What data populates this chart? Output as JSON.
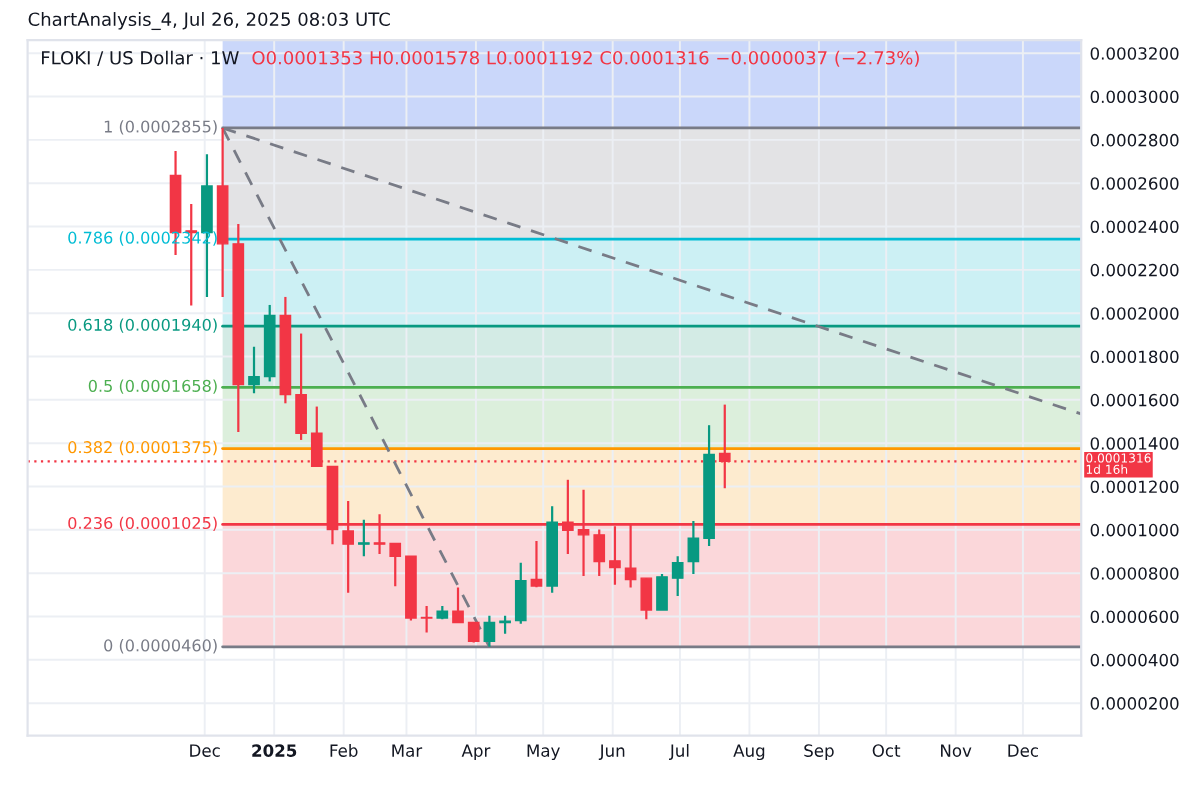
{
  "chart_data": {
    "type": "candlestick",
    "title": "FLOKI / US Dollar · 1W",
    "subtitle": "O0.0001353 H0.0001578 L0.0001192 C0.0001316 −0.0000037 (−2.73%)",
    "annotations": [
      "ChartAnalysis_4, Jul 26, 2025 08:03 UTC"
    ],
    "x": [
      "2024-11-18",
      "2024-11-25",
      "2024-12-02",
      "2024-12-09",
      "2024-12-16",
      "2024-12-23",
      "2024-12-30",
      "2025-01-06",
      "2025-01-13",
      "2025-01-20",
      "2025-01-27",
      "2025-02-03",
      "2025-02-10",
      "2025-02-17",
      "2025-02-24",
      "2025-03-03",
      "2025-03-10",
      "2025-03-17",
      "2025-03-24",
      "2025-03-31",
      "2025-04-07",
      "2025-04-14",
      "2025-04-21",
      "2025-04-28",
      "2025-05-05",
      "2025-05-12",
      "2025-05-19",
      "2025-05-26",
      "2025-06-02",
      "2025-06-09",
      "2025-06-16",
      "2025-06-23",
      "2025-06-30",
      "2025-07-07",
      "2025-07-14",
      "2025-07-21"
    ],
    "ohlc": [
      [
        0.0002636,
        0.0002749,
        0.0002268,
        0.0002372
      ],
      [
        0.000238,
        0.0002504,
        0.0002035,
        0.0002372
      ],
      [
        0.0002372,
        0.0002734,
        0.0002075,
        0.0002587
      ],
      [
        0.0002587,
        0.0002855,
        0.0002075,
        0.000232
      ],
      [
        0.000232,
        0.0002412,
        0.0001452,
        0.000167
      ],
      [
        0.000167,
        0.0001845,
        0.000163,
        0.0001707
      ],
      [
        0.0001707,
        0.0002038,
        0.0001685,
        0.0001989
      ],
      [
        0.0001989,
        0.0002075,
        0.0001584,
        0.0001624
      ],
      [
        0.0001624,
        0.0001906,
        0.0001415,
        0.0001446
      ],
      [
        0.0001446,
        0.0001569,
        0.0001293,
        0.0001293
      ],
      [
        0.0001293,
        0.0001293,
        9.34e-05,
        0.0001001
      ],
      [
        9.95e-05,
        0.0001133,
        7.1e-05,
        9.34e-05
      ],
      [
        9.34e-05,
        0.0001047,
        8.78e-05,
        9.4e-05
      ],
      [
        9.4e-05,
        0.0001072,
        8.88e-05,
        9.34e-05
      ],
      [
        9.37e-05,
        9.37e-05,
        7.4e-05,
        8.78e-05
      ],
      [
        8.78e-05,
        8.78e-05,
        5.81e-05,
        5.93e-05
      ],
      [
        5.96e-05,
        6.49e-05,
        5.26e-05,
        5.93e-05
      ],
      [
        5.93e-05,
        6.49e-05,
        5.87e-05,
        6.24e-05
      ],
      [
        6.24e-05,
        7.34e-05,
        5.72e-05,
        5.72e-05
      ],
      [
        5.72e-05,
        5.72e-05,
        4.8e-05,
        4.86e-05
      ],
      [
        4.86e-05,
        6.03e-05,
        4.6e-05,
        5.72e-05
      ],
      [
        5.72e-05,
        6.03e-05,
        5.2e-05,
        5.78e-05
      ],
      [
        5.81e-05,
        8.48e-05,
        5.66e-05,
        7.65e-05
      ],
      [
        7.71e-05,
        9.49e-05,
        7.35e-05,
        7.41e-05
      ],
      [
        7.41e-05,
        0.0001109,
        7.1e-05,
        0.0001035
      ],
      [
        0.0001035,
        0.0001231,
        8.88e-05,
        9.98e-05
      ],
      [
        0.0001001,
        0.0001185,
        7.87e-05,
        9.77e-05
      ],
      [
        9.77e-05,
        0.0001001,
        7.87e-05,
        8.54e-05
      ],
      [
        8.57e-05,
        0.0001017,
        7.47e-05,
        8.26e-05
      ],
      [
        8.23e-05,
        0.0001023,
        7.34e-05,
        7.71e-05
      ],
      [
        7.77e-05,
        7.77e-05,
        5.87e-05,
        6.3e-05
      ],
      [
        6.3e-05,
        7.96e-05,
        6.3e-05,
        7.83e-05
      ],
      [
        7.77e-05,
        8.78e-05,
        6.95e-05,
        8.48e-05
      ],
      [
        8.54e-05,
        0.0001041,
        7.96e-05,
        9.61e-05
      ],
      [
        9.61e-05,
        0.0001483,
        9.25e-05,
        0.0001348
      ],
      [
        0.0001353,
        0.0001578,
        0.0001192,
        0.0001316
      ]
    ],
    "colors": [
      "#f23645",
      "#f23645",
      "#089981",
      "#f23645",
      "#f23645",
      "#089981",
      "#089981",
      "#f23645",
      "#f23645",
      "#f23645",
      "#f23645",
      "#f23645",
      "#089981",
      "#f23645",
      "#f23645",
      "#f23645",
      "#f23645",
      "#089981",
      "#f23645",
      "#f23645",
      "#089981",
      "#089981",
      "#089981",
      "#f23645",
      "#089981",
      "#f23645",
      "#f23645",
      "#f23645",
      "#f23645",
      "#f23645",
      "#f23645",
      "#089981",
      "#089981",
      "#089981",
      "#089981",
      "#f23645"
    ],
    "series": [
      {
        "type": "line",
        "x": [
          "2024-12-09",
          "2025-04-07"
        ],
        "values": [
          0.0002855,
          4.6e-05
        ],
        "color": "#787b86"
      },
      {
        "type": "line",
        "x": [
          "2024-12-09",
          "2025-12-27"
        ],
        "values": [
          0.0002855,
          0.0001535
        ],
        "color": "#787b86"
      }
    ],
    "line_style": "dashed",
    "ref_lines": [
      {
        "axis": "y",
        "value": 0.0002855,
        "label": "1 (0.0002855)",
        "color": "#787b86"
      },
      {
        "axis": "y",
        "value": 0.0002342,
        "label": "0.786 (0.0002342)",
        "color": "#00bcd4"
      },
      {
        "axis": "y",
        "value": 0.000194,
        "label": "0.618 (0.0001940)",
        "color": "#089981"
      },
      {
        "axis": "y",
        "value": 0.0001658,
        "label": "0.5 (0.0001658)",
        "color": "#4caf50"
      },
      {
        "axis": "y",
        "value": 0.0001375,
        "label": "0.382 (0.0001375)",
        "color": "#ff9800"
      },
      {
        "axis": "y",
        "value": 0.0001025,
        "label": "0.236 (0.0001025)",
        "color": "#f23645"
      },
      {
        "axis": "y",
        "value": 4.6e-05,
        "label": "0 (0.0000460)",
        "color": "#787b86"
      },
      {
        "axis": "y",
        "value": 0.0001316,
        "label": "0.0001316\n1d 16h",
        "color": "#f23645",
        "line_style": "dotted"
      }
    ],
    "bands": [
      {
        "axis": "y",
        "from": 0.0002855,
        "to": 0.000326,
        "color": "#cad7fa"
      },
      {
        "axis": "y",
        "from": 0.0002342,
        "to": 0.0002855,
        "color": "#e3e3e5"
      },
      {
        "axis": "y",
        "from": 0.000194,
        "to": 0.0002342,
        "color": "#ccf0f4"
      },
      {
        "axis": "y",
        "from": 0.0001658,
        "to": 0.000194,
        "color": "#d3ebe5"
      },
      {
        "axis": "y",
        "from": 0.0001375,
        "to": 0.0001658,
        "color": "#dcefdc"
      },
      {
        "axis": "y",
        "from": 0.0001025,
        "to": 0.0001375,
        "color": "#fdebcf"
      },
      {
        "axis": "y",
        "from": 4.6e-05,
        "to": 0.0001025,
        "color": "#fbd7da"
      }
    ],
    "xlim": [
      "2024-09-13",
      "2025-12-27"
    ],
    "xticks": [
      {
        "value": "2024-12-01",
        "label": "Dec"
      },
      {
        "value": "2025-01-01",
        "label": "2025"
      },
      {
        "value": "2025-02-01",
        "label": "Feb"
      },
      {
        "value": "2025-03-01",
        "label": "Mar"
      },
      {
        "value": "2025-04-01",
        "label": "Apr"
      },
      {
        "value": "2025-05-01",
        "label": "May"
      },
      {
        "value": "2025-06-01",
        "label": "Jun"
      },
      {
        "value": "2025-07-01",
        "label": "Jul"
      },
      {
        "value": "2025-08-01",
        "label": "Aug"
      },
      {
        "value": "2025-09-01",
        "label": "Sep"
      },
      {
        "value": "2025-10-01",
        "label": "Oct"
      },
      {
        "value": "2025-11-01",
        "label": "Nov"
      },
      {
        "value": "2025-12-01",
        "label": "Dec"
      }
    ],
    "ylim": [
      5e-06,
      0.000326
    ],
    "yticks": [
      {
        "value": 2e-05,
        "label": "0.0000200"
      },
      {
        "value": 4e-05,
        "label": "0.0000400"
      },
      {
        "value": 6e-05,
        "label": "0.0000600"
      },
      {
        "value": 8e-05,
        "label": "0.0000800"
      },
      {
        "value": 0.0001,
        "label": "0.0001000"
      },
      {
        "value": 0.00012,
        "label": "0.0001200"
      },
      {
        "value": 0.00014,
        "label": "0.0001400"
      },
      {
        "value": 0.00016,
        "label": "0.0001600"
      },
      {
        "value": 0.00018,
        "label": "0.0001800"
      },
      {
        "value": 0.0002,
        "label": "0.0002000"
      },
      {
        "value": 0.00022,
        "label": "0.0002200"
      },
      {
        "value": 0.00024,
        "label": "0.0002400"
      },
      {
        "value": 0.00026,
        "label": "0.0002600"
      },
      {
        "value": 0.00028,
        "label": "0.0002800"
      },
      {
        "value": 0.0003,
        "label": "0.0003000"
      },
      {
        "value": 0.00032,
        "label": "0.0003200"
      }
    ],
    "grid": true,
    "legend": false
  }
}
